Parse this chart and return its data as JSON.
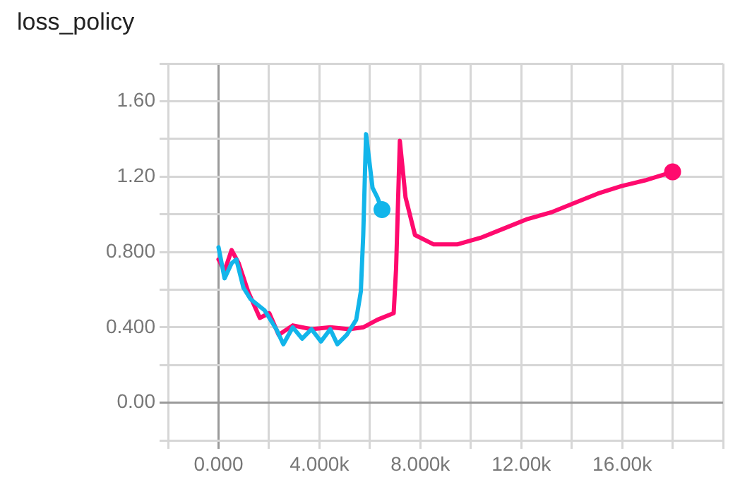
{
  "chart_data": {
    "type": "line",
    "title": "loss_policy",
    "x": [
      0,
      240,
      520,
      709,
      989,
      1268,
      1827,
      2291,
      2570,
      2944,
      3315,
      3687,
      4061,
      4430,
      4710,
      5084,
      5458,
      5642,
      5737,
      5849,
      6106,
      6296,
      6480
    ],
    "series": [
      {
        "color": "#12b5ea",
        "values": [
          0.825,
          0.66,
          0.74,
          0.76,
          0.61,
          0.55,
          0.49,
          0.39,
          0.31,
          0.4,
          0.34,
          0.39,
          0.325,
          0.39,
          0.31,
          0.36,
          0.44,
          0.59,
          0.89,
          1.425,
          1.14,
          1.09,
          1.025
        ]
      },
      {
        "color": "#ff0a6e",
        "x": [
          0,
          240,
          520,
          799,
          1173,
          1637,
          2011,
          2385,
          2944,
          3687,
          4430,
          5177,
          5737,
          6296,
          6944,
          7039,
          7188,
          7413,
          7788,
          8531,
          9458,
          10391,
          11324,
          12251,
          13184,
          14117,
          15045,
          15978,
          16911,
          18000
        ],
        "values": [
          0.76,
          0.7,
          0.81,
          0.74,
          0.59,
          0.45,
          0.475,
          0.36,
          0.41,
          0.39,
          0.4,
          0.39,
          0.4,
          0.44,
          0.475,
          0.71,
          1.39,
          1.09,
          0.89,
          0.84,
          0.84,
          0.875,
          0.925,
          0.975,
          1.01,
          1.06,
          1.11,
          1.15,
          1.18,
          1.225
        ]
      }
    ],
    "xlim": [
      -2000,
      20000
    ],
    "xticks": [
      {
        "value": -2000,
        "label": null
      },
      {
        "value": 0,
        "label": "0.000"
      },
      {
        "value": 2000,
        "label": null
      },
      {
        "value": 4000,
        "label": "4.000k"
      },
      {
        "value": 6000,
        "label": null
      },
      {
        "value": 8000,
        "label": "8.000k"
      },
      {
        "value": 10000,
        "label": null
      },
      {
        "value": 12000,
        "label": "12.00k"
      },
      {
        "value": 14000,
        "label": null
      },
      {
        "value": 16000,
        "label": "16.00k"
      },
      {
        "value": 18000,
        "label": null
      },
      {
        "value": 20000,
        "label": null
      }
    ],
    "ylim": [
      -0.2,
      1.8
    ],
    "yticks": [
      {
        "value": -0.2,
        "label": null
      },
      {
        "value": 0,
        "label": "0.00"
      },
      {
        "value": 0.2,
        "label": null
      },
      {
        "value": 0.4,
        "label": "0.400"
      },
      {
        "value": 0.6,
        "label": null
      },
      {
        "value": 0.8,
        "label": "0.800"
      },
      {
        "value": 1.0,
        "label": null
      },
      {
        "value": 1.2,
        "label": "1.20"
      },
      {
        "value": 1.4,
        "label": null
      },
      {
        "value": 1.6,
        "label": "1.60"
      },
      {
        "value": 1.8,
        "label": null
      }
    ],
    "grid": true,
    "marker": "none",
    "line_style": "solid"
  }
}
